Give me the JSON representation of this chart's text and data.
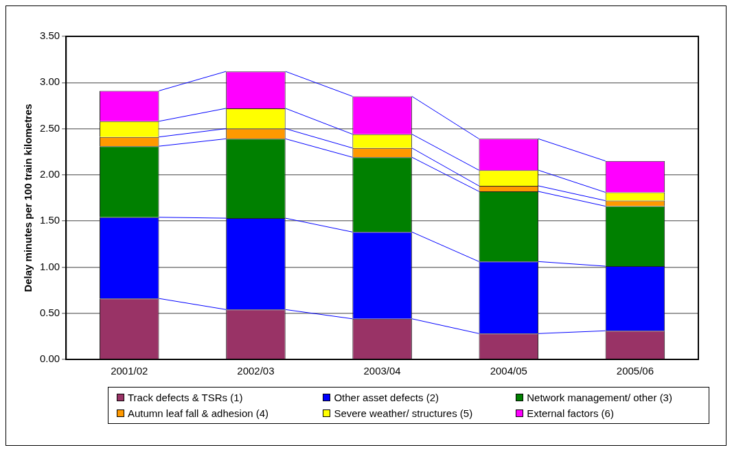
{
  "chart_data": {
    "type": "bar",
    "stacked": true,
    "ylabel": "Delay minutes per 100 train kilometres",
    "categories": [
      "2001/02",
      "2002/03",
      "2003/04",
      "2004/05",
      "2005/06"
    ],
    "series": [
      {
        "name": "Track defects & TSRs (1)",
        "color": "#993366",
        "values": [
          0.66,
          0.54,
          0.44,
          0.28,
          0.31
        ]
      },
      {
        "name": "Other asset defects (2)",
        "color": "#0000ff",
        "values": [
          0.88,
          0.99,
          0.94,
          0.78,
          0.7
        ]
      },
      {
        "name": "Network management/ other (3)",
        "color": "#008000",
        "values": [
          0.77,
          0.86,
          0.81,
          0.76,
          0.65
        ]
      },
      {
        "name": "Autumn leaf fall & adhesion (4)",
        "color": "#ff9900",
        "values": [
          0.1,
          0.11,
          0.1,
          0.06,
          0.06
        ]
      },
      {
        "name": "Severe weather/ structures (5)",
        "color": "#ffff00",
        "values": [
          0.17,
          0.22,
          0.15,
          0.17,
          0.09
        ]
      },
      {
        "name": "External factors (6)",
        "color": "#ff00ff",
        "values": [
          0.33,
          0.4,
          0.41,
          0.34,
          0.34
        ]
      }
    ],
    "ylim": [
      0,
      3.5
    ],
    "yticks": [
      {
        "value": 0,
        "label": "0.00"
      },
      {
        "value": 0.5,
        "label": "0.50"
      },
      {
        "value": 1,
        "label": "1.00"
      },
      {
        "value": 1.5,
        "label": "1.50"
      },
      {
        "value": 2,
        "label": "2.00"
      },
      {
        "value": 2.5,
        "label": "2.50"
      },
      {
        "value": 3,
        "label": "3.00"
      },
      {
        "value": 3.5,
        "label": "3.50"
      }
    ],
    "grid": "y",
    "legend": "bottom"
  }
}
